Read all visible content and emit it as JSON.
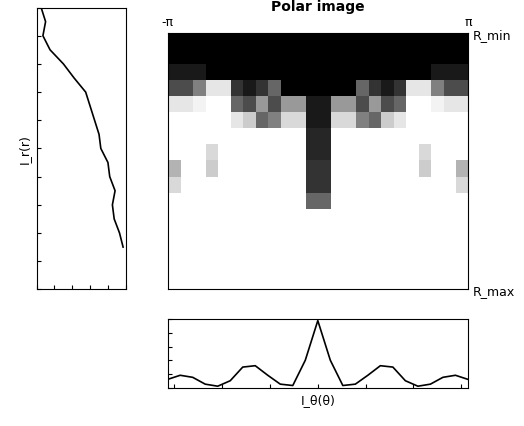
{
  "chart_data": [
    {
      "type": "heatmap",
      "title": "Polar image",
      "xlim": [
        -3.14159,
        3.14159
      ],
      "xticks": [
        {
          "value": -3.14159,
          "label": "-π"
        },
        {
          "value": 3.14159,
          "label": "π"
        }
      ],
      "ylim": [
        1,
        0
      ],
      "yticks": [
        {
          "value": 0,
          "label": "R_min"
        },
        {
          "value": 1,
          "label": "R_max"
        }
      ],
      "cell_range": [
        0,
        1
      ],
      "cells": [
        [
          0,
          0,
          0,
          0,
          0,
          0,
          0,
          0,
          0,
          0,
          0,
          0,
          0,
          0,
          0,
          0,
          0,
          0,
          0,
          0,
          0,
          0,
          0,
          0
        ],
        [
          0,
          0,
          0,
          0,
          0,
          0,
          0,
          0,
          0,
          0,
          0,
          0,
          0,
          0,
          0,
          0,
          0,
          0,
          0,
          0,
          0,
          0,
          0,
          0
        ],
        [
          0.1,
          0.1,
          0.1,
          0,
          0,
          0,
          0,
          0,
          0,
          0,
          0,
          0,
          0,
          0,
          0,
          0,
          0,
          0,
          0,
          0,
          0,
          0.1,
          0.1,
          0.1
        ],
        [
          0.3,
          0.3,
          0.5,
          0.9,
          0.9,
          0.2,
          0.1,
          0.2,
          0.4,
          0,
          0,
          0,
          0,
          0,
          0,
          0.4,
          0.2,
          0.1,
          0.2,
          0.9,
          0.9,
          0.5,
          0.3,
          0.3
        ],
        [
          0.9,
          0.9,
          0.95,
          1,
          1,
          0.4,
          0.3,
          0.6,
          0.3,
          0.6,
          0.6,
          0.1,
          0.1,
          0.6,
          0.6,
          0.3,
          0.6,
          0.3,
          0.4,
          1,
          1,
          0.95,
          0.9,
          0.9
        ],
        [
          1,
          1,
          1,
          1,
          1,
          0.9,
          0.8,
          0.4,
          0.5,
          0.85,
          0.85,
          0.1,
          0.1,
          0.85,
          0.85,
          0.5,
          0.4,
          0.8,
          0.9,
          1,
          1,
          1,
          1,
          1
        ],
        [
          1,
          1,
          1,
          1,
          1,
          1,
          1,
          1,
          1,
          1,
          1,
          0.15,
          0.15,
          1,
          1,
          1,
          1,
          1,
          1,
          1,
          1,
          1,
          1,
          1
        ],
        [
          1,
          1,
          1,
          0.85,
          1,
          1,
          1,
          1,
          1,
          1,
          1,
          0.15,
          0.15,
          1,
          1,
          1,
          1,
          1,
          1,
          1,
          0.85,
          1,
          1,
          1
        ],
        [
          0.7,
          1,
          1,
          0.8,
          1,
          1,
          1,
          1,
          1,
          1,
          1,
          0.2,
          0.2,
          1,
          1,
          1,
          1,
          1,
          1,
          1,
          0.8,
          1,
          1,
          0.7
        ],
        [
          0.85,
          1,
          1,
          1,
          1,
          1,
          1,
          1,
          1,
          1,
          1,
          0.2,
          0.2,
          1,
          1,
          1,
          1,
          1,
          1,
          1,
          1,
          1,
          1,
          0.85
        ],
        [
          1,
          1,
          1,
          1,
          1,
          1,
          1,
          1,
          1,
          1,
          1,
          0.4,
          0.4,
          1,
          1,
          1,
          1,
          1,
          1,
          1,
          1,
          1,
          1,
          1
        ],
        [
          1,
          1,
          1,
          1,
          1,
          1,
          1,
          1,
          1,
          1,
          1,
          1,
          1,
          1,
          1,
          1,
          1,
          1,
          1,
          1,
          1,
          1,
          1,
          1
        ],
        [
          1,
          1,
          1,
          1,
          1,
          1,
          1,
          1,
          1,
          1,
          1,
          1,
          1,
          1,
          1,
          1,
          1,
          1,
          1,
          1,
          1,
          1,
          1,
          1
        ],
        [
          1,
          1,
          1,
          1,
          1,
          1,
          1,
          1,
          1,
          1,
          1,
          1,
          1,
          1,
          1,
          1,
          1,
          1,
          1,
          1,
          1,
          1,
          1,
          1
        ],
        [
          1,
          1,
          1,
          1,
          1,
          1,
          1,
          1,
          1,
          1,
          1,
          1,
          1,
          1,
          1,
          1,
          1,
          1,
          1,
          1,
          1,
          1,
          1,
          1
        ],
        [
          1,
          1,
          1,
          1,
          1,
          1,
          1,
          1,
          1,
          1,
          1,
          1,
          1,
          1,
          1,
          1,
          1,
          1,
          1,
          1,
          1,
          1,
          1,
          1
        ]
      ]
    },
    {
      "type": "line",
      "orientation": "horizontal",
      "y_label": "I_r(r)",
      "color": "#000000",
      "x": [
        0,
        0.05,
        0.1,
        0.15,
        0.2,
        0.25,
        0.3,
        0.35,
        0.4,
        0.45,
        0.5,
        0.55,
        0.6,
        0.65,
        0.7,
        0.75,
        0.8,
        0.85
      ],
      "values": [
        0.05,
        0.1,
        0.07,
        0.15,
        0.3,
        0.42,
        0.55,
        0.6,
        0.65,
        0.7,
        0.72,
        0.8,
        0.82,
        0.88,
        0.85,
        0.87,
        0.93,
        0.97
      ],
      "xlim": [
        0,
        1
      ],
      "xticks": [
        0,
        0.2,
        0.4,
        0.6,
        0.8,
        1
      ],
      "ylim": [
        1,
        0
      ],
      "yticks": [
        0,
        0.1,
        0.2,
        0.3,
        0.4,
        0.5,
        0.6,
        0.7,
        0.8,
        0.9,
        1
      ],
      "tick_labels": false
    },
    {
      "type": "line",
      "x_label": "I_θ(θ)",
      "color": "#000000",
      "x": [
        -3.1416,
        -2.8798,
        -2.618,
        -2.3562,
        -2.0944,
        -1.8326,
        -1.5708,
        -1.309,
        -1.0472,
        -0.7854,
        -0.5236,
        -0.2618,
        0,
        0.2618,
        0.5236,
        0.7854,
        1.0472,
        1.309,
        1.5708,
        1.8326,
        2.0944,
        2.3562,
        2.618,
        2.8798,
        3.1416
      ],
      "values": [
        0.12,
        0.18,
        0.15,
        0.05,
        0.02,
        0.1,
        0.3,
        0.32,
        0.18,
        0.05,
        0.03,
        0.4,
        0.98,
        0.4,
        0.03,
        0.05,
        0.18,
        0.32,
        0.3,
        0.1,
        0.02,
        0.05,
        0.15,
        0.18,
        0.12
      ],
      "xlim": [
        -3.1416,
        3.1416
      ],
      "xticks": [
        -3,
        -2,
        -1,
        0,
        1,
        2,
        3
      ],
      "ylim": [
        0,
        1
      ],
      "yticks": [
        0,
        0.2,
        0.4,
        0.6,
        0.8,
        1
      ],
      "tick_labels": false
    }
  ]
}
